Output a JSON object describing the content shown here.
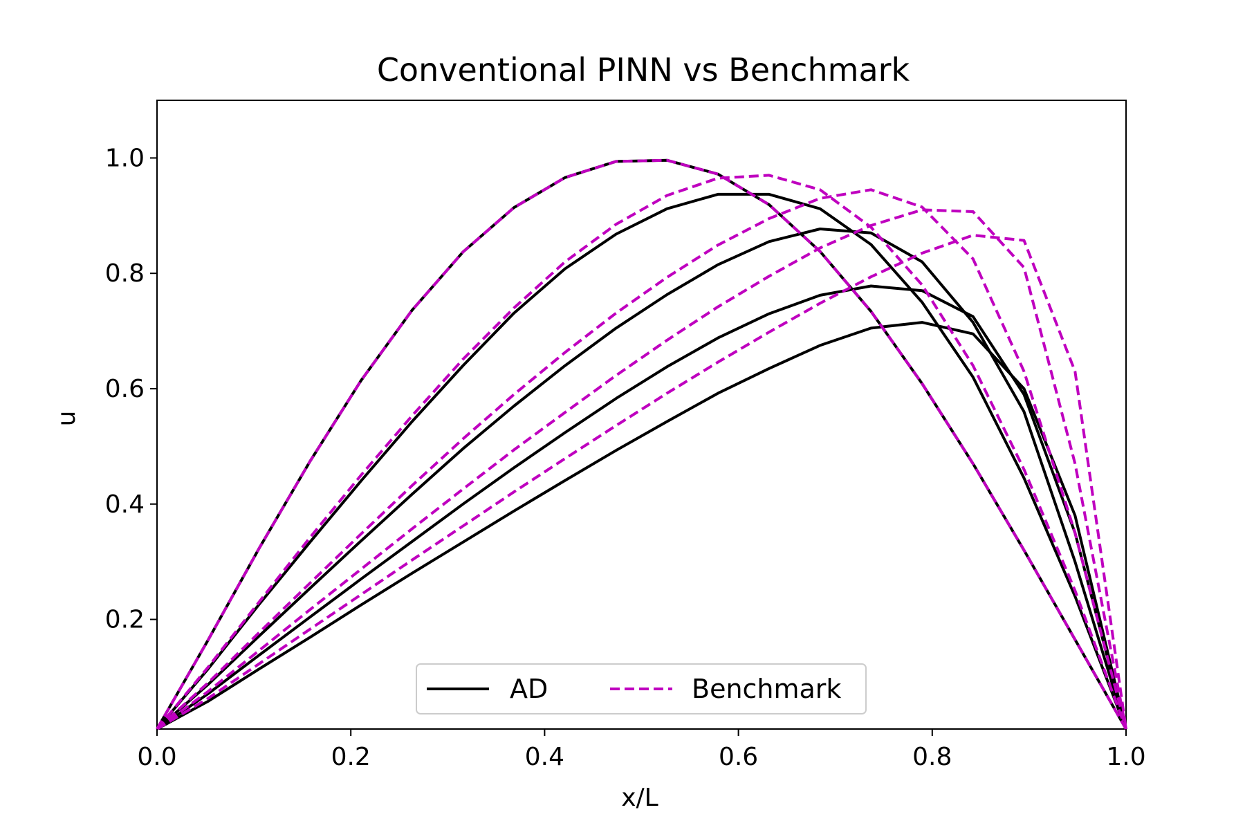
{
  "chart_data": {
    "type": "line",
    "title": "Conventional PINN vs Benchmark",
    "xlabel": "x/L",
    "ylabel": "u",
    "xlim": [
      0.0,
      1.0
    ],
    "ylim": [
      0.01,
      1.1
    ],
    "xticks": [
      0.0,
      0.2,
      0.4,
      0.6,
      0.8,
      1.0
    ],
    "xtick_labels": [
      "0.0",
      "0.2",
      "0.4",
      "0.6",
      "0.8",
      "1.0"
    ],
    "yticks": [
      0.2,
      0.4,
      0.6,
      0.8,
      1.0
    ],
    "ytick_labels": [
      "0.2",
      "0.4",
      "0.6",
      "0.8",
      "1.0"
    ],
    "grid": false,
    "legend_position": "bottom-center",
    "legend": [
      {
        "label": "AD",
        "style": "solid",
        "color": "#000000"
      },
      {
        "label": "Benchmark",
        "style": "dashed",
        "color": "#bf00bf"
      }
    ],
    "x": [
      0.0,
      0.0526,
      0.1053,
      0.1579,
      0.2105,
      0.2632,
      0.3158,
      0.3684,
      0.4211,
      0.4737,
      0.5263,
      0.5789,
      0.6316,
      0.6842,
      0.7368,
      0.7895,
      0.8421,
      0.8947,
      0.9474,
      1.0
    ],
    "ad_series": [
      {
        "values": [
          0.01,
          0.164,
          0.323,
          0.474,
          0.614,
          0.736,
          0.837,
          0.914,
          0.966,
          0.994,
          0.996,
          0.972,
          0.919,
          0.838,
          0.734,
          0.609,
          0.47,
          0.32,
          0.165,
          0.01
        ]
      },
      {
        "values": [
          0.01,
          0.114,
          0.226,
          0.334,
          0.44,
          0.543,
          0.64,
          0.731,
          0.808,
          0.868,
          0.912,
          0.937,
          0.937,
          0.912,
          0.85,
          0.75,
          0.62,
          0.445,
          0.24,
          0.01
        ]
      },
      {
        "values": [
          0.01,
          0.087,
          0.171,
          0.254,
          0.336,
          0.417,
          0.496,
          0.57,
          0.64,
          0.705,
          0.763,
          0.815,
          0.855,
          0.877,
          0.87,
          0.82,
          0.715,
          0.56,
          0.3,
          0.01
        ]
      },
      {
        "values": [
          0.01,
          0.071,
          0.138,
          0.204,
          0.27,
          0.335,
          0.4,
          0.463,
          0.524,
          0.583,
          0.638,
          0.688,
          0.73,
          0.762,
          0.778,
          0.77,
          0.725,
          0.59,
          0.35,
          0.01
        ]
      },
      {
        "values": [
          0.01,
          0.058,
          0.114,
          0.169,
          0.225,
          0.28,
          0.334,
          0.388,
          0.441,
          0.493,
          0.543,
          0.592,
          0.635,
          0.675,
          0.705,
          0.715,
          0.695,
          0.6,
          0.38,
          0.01
        ]
      }
    ],
    "benchmark_series": [
      {
        "values": [
          0.01,
          0.164,
          0.323,
          0.474,
          0.614,
          0.736,
          0.837,
          0.914,
          0.966,
          0.994,
          0.996,
          0.972,
          0.919,
          0.838,
          0.734,
          0.609,
          0.47,
          0.32,
          0.165,
          0.01
        ]
      },
      {
        "values": [
          0.01,
          0.117,
          0.23,
          0.342,
          0.45,
          0.553,
          0.651,
          0.74,
          0.82,
          0.885,
          0.935,
          0.965,
          0.97,
          0.945,
          0.88,
          0.78,
          0.64,
          0.46,
          0.25,
          0.01
        ]
      },
      {
        "values": [
          0.01,
          0.09,
          0.177,
          0.263,
          0.348,
          0.432,
          0.513,
          0.59,
          0.663,
          0.731,
          0.793,
          0.849,
          0.895,
          0.93,
          0.945,
          0.915,
          0.825,
          0.63,
          0.35,
          0.01
        ]
      },
      {
        "values": [
          0.01,
          0.075,
          0.146,
          0.217,
          0.287,
          0.357,
          0.426,
          0.494,
          0.559,
          0.623,
          0.684,
          0.742,
          0.795,
          0.844,
          0.883,
          0.91,
          0.907,
          0.81,
          0.47,
          0.01
        ]
      },
      {
        "values": [
          0.01,
          0.063,
          0.123,
          0.183,
          0.243,
          0.303,
          0.362,
          0.421,
          0.479,
          0.536,
          0.592,
          0.646,
          0.698,
          0.748,
          0.794,
          0.835,
          0.866,
          0.857,
          0.63,
          0.01
        ]
      }
    ]
  }
}
